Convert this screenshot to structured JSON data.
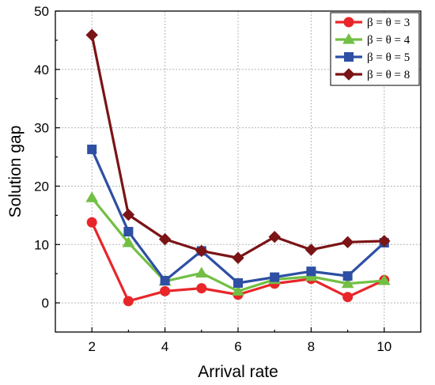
{
  "chart_data": {
    "type": "line",
    "title": "",
    "xlabel": "Arrival rate",
    "ylabel": "Solution gap",
    "x": [
      2,
      3,
      4,
      5,
      6,
      7,
      8,
      9,
      10
    ],
    "xlim": [
      1,
      11
    ],
    "ylim": [
      -5,
      50
    ],
    "xticks": [
      2,
      4,
      6,
      8,
      10
    ],
    "yticks": [
      0,
      10,
      20,
      30,
      40,
      50
    ],
    "grid": true,
    "legend_position": "top-right",
    "series": [
      {
        "name": "β = θ = 3",
        "color": "#e8262a",
        "marker": "circle",
        "values": [
          13.8,
          0.3,
          2.0,
          2.5,
          1.4,
          3.3,
          4.1,
          1.0,
          3.9
        ]
      },
      {
        "name": "β = θ = 4",
        "color": "#72bf44",
        "marker": "triangle",
        "values": [
          18.0,
          10.3,
          3.7,
          5.1,
          2.0,
          4.0,
          4.5,
          3.3,
          3.8
        ]
      },
      {
        "name": "β = θ = 5",
        "color": "#2e4fa3",
        "marker": "square",
        "values": [
          26.3,
          12.2,
          3.8,
          8.9,
          3.4,
          4.4,
          5.4,
          4.6,
          10.3
        ]
      },
      {
        "name": "β = θ = 8",
        "color": "#7b1416",
        "marker": "diamond",
        "values": [
          45.9,
          15.1,
          10.9,
          8.9,
          7.7,
          11.3,
          9.1,
          10.4,
          10.6
        ]
      }
    ]
  }
}
